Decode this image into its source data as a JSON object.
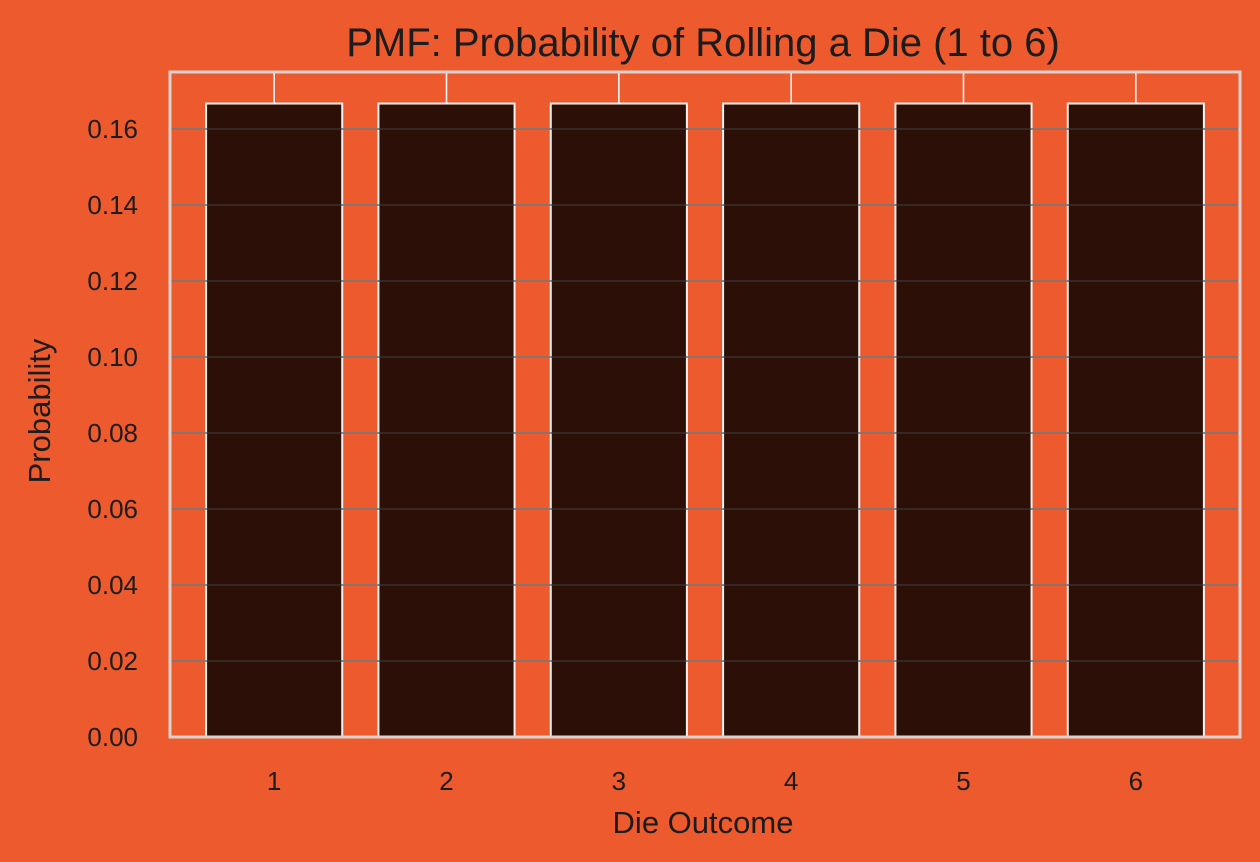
{
  "chart_data": {
    "type": "bar",
    "title": "PMF: Probability of Rolling a Die (1 to 6)",
    "xlabel": "Die Outcome",
    "ylabel": "Probability",
    "categories": [
      "1",
      "2",
      "3",
      "4",
      "5",
      "6"
    ],
    "values": [
      0.1667,
      0.1667,
      0.1667,
      0.1667,
      0.1667,
      0.1667
    ],
    "ylim": [
      0,
      0.175
    ],
    "yticks": [
      0.0,
      0.02,
      0.04,
      0.06,
      0.08,
      0.1,
      0.12,
      0.14,
      0.16
    ],
    "ytick_labels": [
      "0.00",
      "0.02",
      "0.04",
      "0.06",
      "0.08",
      "0.10",
      "0.12",
      "0.14",
      "0.16"
    ],
    "grid": true,
    "colors": {
      "background": "#ec5a2e",
      "bar_fill": "#2c1007",
      "bar_edge": "#f2f2f2",
      "grid": "#f3f3f3",
      "frame": "#d9d2cf",
      "text": "#1c1c1c"
    }
  }
}
